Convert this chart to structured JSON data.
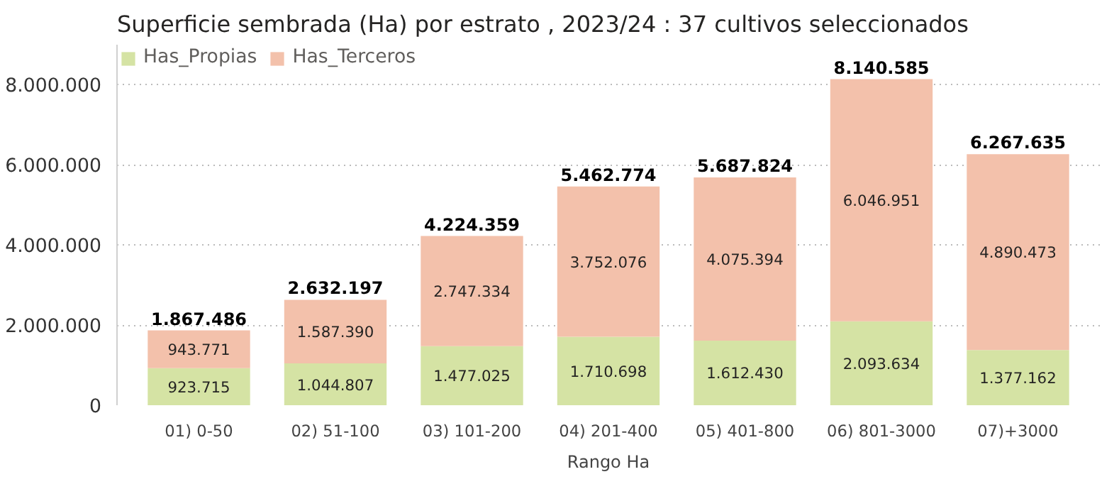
{
  "chart_data": {
    "type": "bar",
    "title": "Superficie sembrada (Ha) por estrato , 2023/24 : 37 cultivos seleccionados",
    "xlabel": "Rango Ha",
    "categories": [
      "01) 0-50",
      "02) 51-100",
      "03) 101-200",
      "04) 201-400",
      "05) 401-800",
      "06) 801-3000",
      "07)+3000"
    ],
    "series": [
      {
        "name": "Has_Propias",
        "color": "#d5e3a4",
        "values": [
          923715,
          1044807,
          1477025,
          1710698,
          1612430,
          2093634,
          1377162
        ],
        "value_labels": [
          "923.715",
          "1.044.807",
          "1.477.025",
          "1.710.698",
          "1.612.430",
          "2.093.634",
          "1.377.162"
        ]
      },
      {
        "name": "Has_Terceros",
        "color": "#f3c1ab",
        "values": [
          943771,
          1587390,
          2747334,
          3752076,
          4075394,
          6046951,
          4890473
        ],
        "value_labels": [
          "943.771",
          "1.587.390",
          "2.747.334",
          "3.752.076",
          "4.075.394",
          "6.046.951",
          "4.890.473"
        ]
      }
    ],
    "totals": [
      "1.867.486",
      "2.632.197",
      "4.224.359",
      "5.462.774",
      "5.687.824",
      "8.140.585",
      "6.267.635"
    ],
    "stacked": true,
    "ylim": [
      0,
      9000000
    ],
    "yticks": [
      {
        "value": 0,
        "label": "0"
      },
      {
        "value": 2000000,
        "label": "2.000.000"
      },
      {
        "value": 4000000,
        "label": "4.000.000"
      },
      {
        "value": 6000000,
        "label": "6.000.000"
      },
      {
        "value": 8000000,
        "label": "8.000.000"
      }
    ],
    "grid": "y",
    "legend": "top left"
  }
}
